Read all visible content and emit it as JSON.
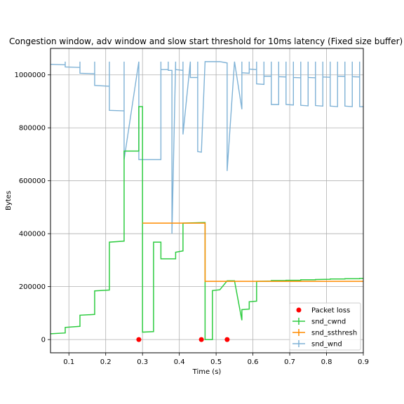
{
  "chart_data": {
    "type": "line",
    "title": "Congestion window, adv window and slow start threshold for 10ms latency (Fixed size buffer)",
    "xlabel": "Time (s)",
    "ylabel": "Bytes",
    "xlim": [
      0.05,
      0.9
    ],
    "ylim": [
      -50000,
      1100000
    ],
    "x_ticks": [
      0.1,
      0.2,
      0.3,
      0.4,
      0.5,
      0.6,
      0.7,
      0.8,
      0.9
    ],
    "x_tick_labels": [
      "0.1",
      "0.2",
      "0.3",
      "0.4",
      "0.5",
      "0.6",
      "0.7",
      "0.8",
      "0.9"
    ],
    "y_ticks": [
      0,
      200000,
      400000,
      600000,
      800000,
      1000000
    ],
    "y_tick_labels": [
      "0",
      "200000",
      "400000",
      "600000",
      "800000",
      "1000000"
    ],
    "grid": true,
    "legend_position": "lower-right",
    "series": [
      {
        "name": "snd_cwnd",
        "kind": "step-line",
        "color": "#2ecc40",
        "points": [
          [
            0.05,
            22000
          ],
          [
            0.09,
            25000
          ],
          [
            0.09,
            46000
          ],
          [
            0.13,
            50000
          ],
          [
            0.13,
            92000
          ],
          [
            0.17,
            95000
          ],
          [
            0.17,
            184000
          ],
          [
            0.21,
            187000
          ],
          [
            0.21,
            368000
          ],
          [
            0.25,
            372000
          ],
          [
            0.25,
            712000
          ],
          [
            0.29,
            712000
          ],
          [
            0.29,
            880000
          ],
          [
            0.3,
            880000
          ],
          [
            0.3,
            28000
          ],
          [
            0.33,
            30000
          ],
          [
            0.33,
            368000
          ],
          [
            0.35,
            368000
          ],
          [
            0.35,
            305000
          ],
          [
            0.39,
            305000
          ],
          [
            0.39,
            330000
          ],
          [
            0.41,
            335000
          ],
          [
            0.41,
            440000
          ],
          [
            0.47,
            442000
          ],
          [
            0.47,
            0
          ],
          [
            0.49,
            0
          ],
          [
            0.49,
            185000
          ],
          [
            0.51,
            188000
          ],
          [
            0.53,
            222000
          ],
          [
            0.55,
            222000
          ],
          [
            0.57,
            73000
          ],
          [
            0.57,
            113000
          ],
          [
            0.59,
            115000
          ],
          [
            0.59,
            143000
          ],
          [
            0.61,
            145000
          ],
          [
            0.61,
            220000
          ],
          [
            0.65,
            221000
          ],
          [
            0.65,
            223000
          ],
          [
            0.69,
            223000
          ],
          [
            0.69,
            224000
          ],
          [
            0.73,
            224000
          ],
          [
            0.73,
            226000
          ],
          [
            0.77,
            226000
          ],
          [
            0.77,
            227000
          ],
          [
            0.81,
            228000
          ],
          [
            0.81,
            229000
          ],
          [
            0.85,
            229000
          ],
          [
            0.85,
            230000
          ],
          [
            0.89,
            230000
          ],
          [
            0.89,
            231000
          ],
          [
            0.9,
            231000
          ]
        ]
      },
      {
        "name": "snd_ssthresh",
        "kind": "step-line",
        "color": "#ff8c00",
        "points": [
          [
            0.3,
            440000
          ],
          [
            0.47,
            440000
          ],
          [
            0.47,
            220000
          ],
          [
            0.9,
            220000
          ]
        ]
      },
      {
        "name": "snd_wnd",
        "kind": "line",
        "color": "#7fb2d6",
        "points": [
          [
            0.05,
            1040000
          ],
          [
            0.09,
            1038000
          ],
          [
            0.09,
            1050000
          ],
          [
            0.09,
            1030000
          ],
          [
            0.13,
            1028000
          ],
          [
            0.13,
            1050000
          ],
          [
            0.13,
            1006000
          ],
          [
            0.17,
            1004000
          ],
          [
            0.17,
            1050000
          ],
          [
            0.17,
            960000
          ],
          [
            0.21,
            957000
          ],
          [
            0.21,
            1050000
          ],
          [
            0.21,
            866000
          ],
          [
            0.25,
            864000
          ],
          [
            0.25,
            1050000
          ],
          [
            0.25,
            680000
          ],
          [
            0.29,
            1050000
          ],
          [
            0.29,
            680000
          ],
          [
            0.35,
            680000
          ],
          [
            0.35,
            1050000
          ],
          [
            0.35,
            1020000
          ],
          [
            0.37,
            1020000
          ],
          [
            0.37,
            1050000
          ],
          [
            0.37,
            1017000
          ],
          [
            0.38,
            1017000
          ],
          [
            0.38,
            400000
          ],
          [
            0.39,
            1050000
          ],
          [
            0.39,
            1020000
          ],
          [
            0.41,
            1017000
          ],
          [
            0.41,
            1050000
          ],
          [
            0.41,
            775000
          ],
          [
            0.43,
            1050000
          ],
          [
            0.43,
            990000
          ],
          [
            0.45,
            990000
          ],
          [
            0.45,
            1050000
          ],
          [
            0.45,
            710000
          ],
          [
            0.46,
            708000
          ],
          [
            0.47,
            1050000
          ],
          [
            0.51,
            1050000
          ],
          [
            0.53,
            1045000
          ],
          [
            0.53,
            637000
          ],
          [
            0.55,
            1050000
          ],
          [
            0.57,
            870000
          ],
          [
            0.57,
            1050000
          ],
          [
            0.57,
            1008000
          ],
          [
            0.59,
            1006000
          ],
          [
            0.59,
            1050000
          ],
          [
            0.59,
            1022000
          ],
          [
            0.61,
            1020000
          ],
          [
            0.61,
            1050000
          ],
          [
            0.61,
            966000
          ],
          [
            0.63,
            964000
          ],
          [
            0.63,
            1050000
          ],
          [
            0.63,
            995000
          ],
          [
            0.65,
            995000
          ],
          [
            0.65,
            1050000
          ],
          [
            0.65,
            888000
          ],
          [
            0.67,
            888000
          ],
          [
            0.67,
            1050000
          ],
          [
            0.67,
            993000
          ],
          [
            0.69,
            992000
          ],
          [
            0.69,
            1050000
          ],
          [
            0.69,
            888000
          ],
          [
            0.71,
            886000
          ],
          [
            0.71,
            1050000
          ],
          [
            0.71,
            990000
          ],
          [
            0.73,
            989000
          ],
          [
            0.73,
            1050000
          ],
          [
            0.73,
            885000
          ],
          [
            0.75,
            883000
          ],
          [
            0.75,
            1050000
          ],
          [
            0.75,
            990000
          ],
          [
            0.77,
            989000
          ],
          [
            0.77,
            1050000
          ],
          [
            0.77,
            884000
          ],
          [
            0.79,
            882000
          ],
          [
            0.79,
            1050000
          ],
          [
            0.79,
            992000
          ],
          [
            0.81,
            991000
          ],
          [
            0.81,
            1050000
          ],
          [
            0.81,
            882000
          ],
          [
            0.83,
            880000
          ],
          [
            0.83,
            1050000
          ],
          [
            0.83,
            995000
          ],
          [
            0.85,
            994000
          ],
          [
            0.85,
            1050000
          ],
          [
            0.85,
            882000
          ],
          [
            0.87,
            880000
          ],
          [
            0.87,
            1050000
          ],
          [
            0.87,
            993000
          ],
          [
            0.89,
            992000
          ],
          [
            0.89,
            1050000
          ],
          [
            0.89,
            880000
          ],
          [
            0.9,
            880000
          ]
        ]
      },
      {
        "name": "Packet loss",
        "kind": "scatter",
        "color": "#ff0000",
        "points": [
          [
            0.29,
            0
          ],
          [
            0.46,
            0
          ],
          [
            0.53,
            0
          ]
        ]
      }
    ],
    "legend": [
      {
        "label": "Packet loss",
        "marker": "dot",
        "color": "#ff0000"
      },
      {
        "label": "snd_cwnd",
        "marker": "line-plus",
        "color": "#2ecc40"
      },
      {
        "label": "snd_ssthresh",
        "marker": "line-plus",
        "color": "#ff8c00"
      },
      {
        "label": "snd_wnd",
        "marker": "line-plus",
        "color": "#7fb2d6"
      }
    ]
  }
}
